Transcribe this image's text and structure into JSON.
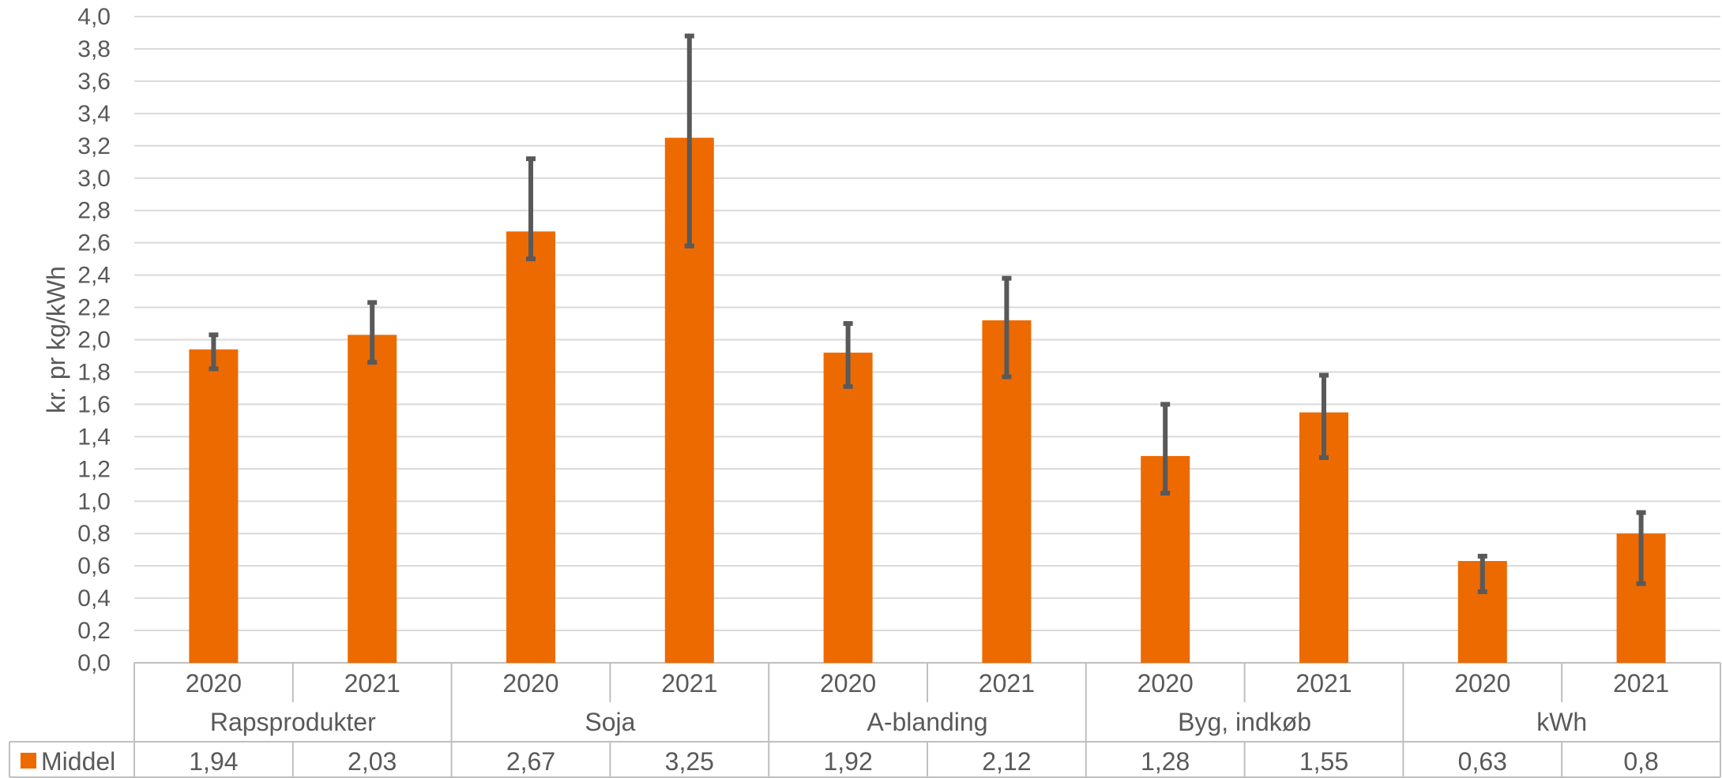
{
  "chart_data": {
    "type": "bar",
    "ylabel": "kr. pr kg/kWh",
    "ylim": [
      0,
      4.0
    ],
    "ytick_step": 0.2,
    "ytick_labels": [
      "0,0",
      "0,2",
      "0,4",
      "0,6",
      "0,8",
      "1,0",
      "1,2",
      "1,4",
      "1,6",
      "1,8",
      "2,0",
      "2,2",
      "2,4",
      "2,6",
      "2,8",
      "3,0",
      "3,2",
      "3,4",
      "3,6",
      "3,8",
      "4,0"
    ],
    "grid": true,
    "groups": [
      {
        "name": "Rapsprodukter",
        "years": [
          "2020",
          "2021"
        ]
      },
      {
        "name": "Soja",
        "years": [
          "2020",
          "2021"
        ]
      },
      {
        "name": "A-blanding",
        "years": [
          "2020",
          "2021"
        ]
      },
      {
        "name": "Byg, indkøb",
        "years": [
          "2020",
          "2021"
        ]
      },
      {
        "name": "kWh",
        "years": [
          "2020",
          "2021"
        ]
      }
    ],
    "series": [
      {
        "name": "Middel",
        "color": "#ED6A00",
        "values": [
          1.94,
          2.03,
          2.67,
          3.25,
          1.92,
          2.12,
          1.28,
          1.55,
          0.63,
          0.8
        ],
        "value_labels": [
          "1,94",
          "2,03",
          "2,67",
          "3,25",
          "1,92",
          "2,12",
          "1,28",
          "1,55",
          "0,63",
          "0,8"
        ],
        "error_low": [
          1.82,
          1.86,
          2.5,
          2.58,
          1.71,
          1.77,
          1.05,
          1.27,
          0.44,
          0.49
        ],
        "error_high": [
          2.03,
          2.23,
          3.12,
          3.88,
          2.1,
          2.38,
          1.6,
          1.78,
          0.66,
          0.93
        ]
      }
    ],
    "error_bar_color": "#595959",
    "legend": "data-table"
  }
}
